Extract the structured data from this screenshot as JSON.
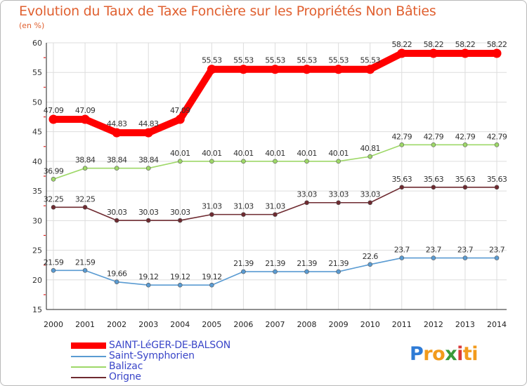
{
  "header": {
    "title": "Evolution du Taux de Taxe Foncière sur les Propriétés Non Bâties",
    "unit": "(en %)"
  },
  "chart_data": {
    "type": "line",
    "title": "Evolution du Taux de Taxe Foncière sur les Propriétés Non Bâties",
    "ylabel": "(en %)",
    "xlabel": "",
    "ylim": [
      15,
      60
    ],
    "yticks": [
      15,
      20,
      25,
      30,
      35,
      40,
      45,
      50,
      55,
      60
    ],
    "x": [
      "2000",
      "2001",
      "2002",
      "2003",
      "2004",
      "2005",
      "2006",
      "2007",
      "2008",
      "2009",
      "2010",
      "2011",
      "2012",
      "2013",
      "2014"
    ],
    "grid": true,
    "series": [
      {
        "name": "SAINT-LéGER-DE-BALSON",
        "color": "#ff0000",
        "values": [
          47.09,
          47.09,
          44.83,
          44.83,
          47.09,
          55.53,
          55.53,
          55.53,
          55.53,
          55.53,
          55.53,
          58.22,
          58.22,
          58.22,
          58.22
        ],
        "labels": [
          "47.09",
          "47.09",
          "44.83",
          "44.83",
          "47.09",
          "55.53",
          "55.53",
          "55.53",
          "55.53",
          "55.53",
          "55.53",
          "58.22",
          "58.22",
          "58.22",
          "58.22"
        ]
      },
      {
        "name": "Saint-Symphorien",
        "color": "#5a9bd2",
        "values": [
          21.59,
          21.59,
          19.66,
          19.12,
          19.12,
          19.12,
          21.39,
          21.39,
          21.39,
          21.39,
          22.6,
          23.7,
          23.7,
          23.7,
          23.7
        ],
        "labels": [
          "21.59",
          "21.59",
          "19.66",
          "19.12",
          "19.12",
          "19.12",
          "21.39",
          "21.39",
          "21.39",
          "21.39",
          "22.6",
          "23.7",
          "23.7",
          "23.7",
          "23.7"
        ]
      },
      {
        "name": "Balizac",
        "color": "#9ed868",
        "values": [
          36.99,
          38.84,
          38.84,
          38.84,
          40.01,
          40.01,
          40.01,
          40.01,
          40.01,
          40.01,
          40.81,
          42.79,
          42.79,
          42.79,
          42.79
        ],
        "labels": [
          "36.99",
          "38.84",
          "38.84",
          "38.84",
          "40.01",
          "40.01",
          "40.01",
          "40.01",
          "40.01",
          "40.01",
          "40.81",
          "42.79",
          "42.79",
          "42.79",
          "42.79"
        ]
      },
      {
        "name": "Origne",
        "color": "#6e2a30",
        "values": [
          32.25,
          32.25,
          30.03,
          30.03,
          30.03,
          31.03,
          31.03,
          31.03,
          33.03,
          33.03,
          33.03,
          35.63,
          35.63,
          35.63,
          35.63
        ],
        "labels": [
          "32.25",
          "32.25",
          "30.03",
          "30.03",
          "30.03",
          "31.03",
          "31.03",
          "31.03",
          "33.03",
          "33.03",
          "33.03",
          "35.63",
          "35.63",
          "35.63",
          "35.63"
        ]
      }
    ]
  },
  "logo": {
    "letters": [
      "P",
      "r",
      "o",
      "x",
      "i",
      "t",
      "i"
    ],
    "colors": [
      "#2e7bd6",
      "#f29b1c",
      "#f29b1c",
      "#3a9a3a",
      "#d93a3a",
      "#f29b1c",
      "#f29b1c"
    ]
  }
}
